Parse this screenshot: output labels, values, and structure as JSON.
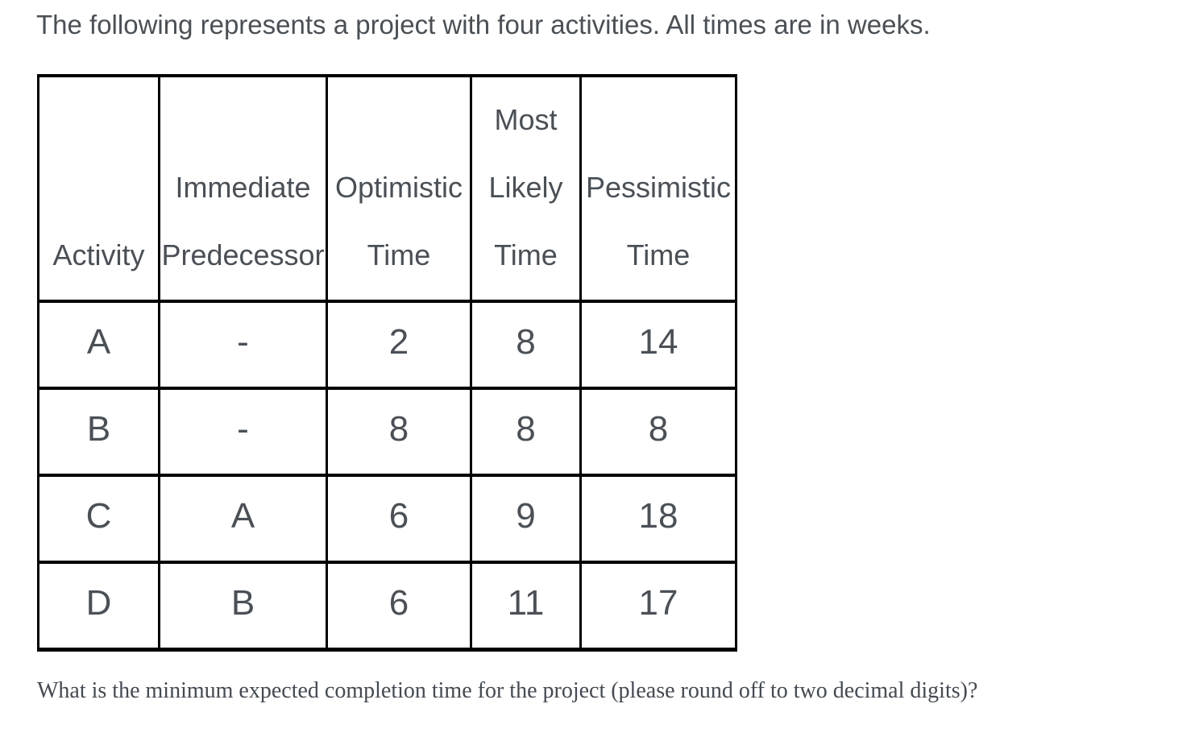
{
  "page": {
    "title": "The following represents a project with four activities. All times are in weeks.",
    "question": "What is the minimum expected completion time for the project (please round off to two decimal digits)?"
  },
  "table": {
    "headers": {
      "activity": "Activity",
      "predecessor": "Immediate Predecessor",
      "optimistic": "Optimistic Time",
      "most_likely": "Most Likely Time",
      "pessimistic": "Pessimistic Time"
    },
    "rows": [
      {
        "activity": "A",
        "predecessor": "-",
        "optimistic": "2",
        "most_likely": "8",
        "pessimistic": "14"
      },
      {
        "activity": "B",
        "predecessor": "-",
        "optimistic": "8",
        "most_likely": "8",
        "pessimistic": "8"
      },
      {
        "activity": "C",
        "predecessor": "A",
        "optimistic": "6",
        "most_likely": "9",
        "pessimistic": "18"
      },
      {
        "activity": "D",
        "predecessor": "B",
        "optimistic": "6",
        "most_likely": "11",
        "pessimistic": "17"
      }
    ]
  },
  "colors": {
    "text": "#4a5056",
    "question_text": "#444a52",
    "border": "#000000",
    "background": "#ffffff"
  }
}
